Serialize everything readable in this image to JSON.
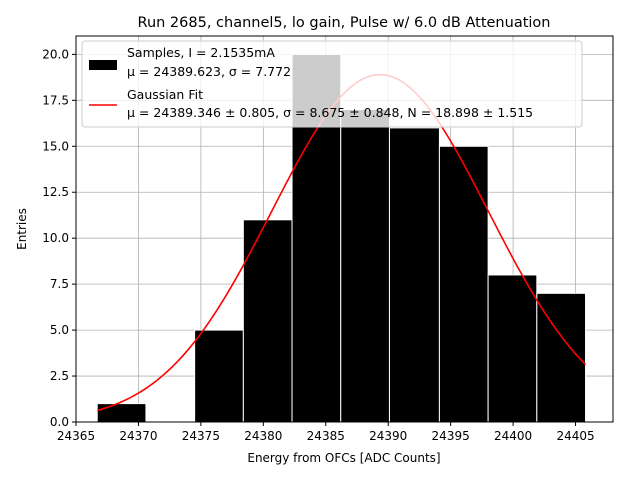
{
  "chart_data": {
    "type": "bar",
    "title": "Run 2685, channel5, lo gain, Pulse w/ 6.0 dB Attenuation",
    "xlabel": "Energy from OFCs [ADC Counts]",
    "ylabel": "Entries",
    "xlim": [
      24365,
      24408
    ],
    "ylim": [
      0,
      21
    ],
    "xticks": [
      24365,
      24370,
      24375,
      24380,
      24385,
      24390,
      24395,
      24400,
      24405
    ],
    "yticks": [
      0.0,
      2.5,
      5.0,
      7.5,
      10.0,
      12.5,
      15.0,
      17.5,
      20.0
    ],
    "grid": true,
    "legend_position": "upper-left",
    "histogram": {
      "name": "Samples, I = 2.1535mA",
      "stats_label": "μ = 24389.623, σ = 7.772",
      "color": "#000000",
      "bins": [
        {
          "x0": 24366.7,
          "x1": 24370.6,
          "count": 1
        },
        {
          "x0": 24370.6,
          "x1": 24374.5,
          "count": 0
        },
        {
          "x0": 24374.5,
          "x1": 24378.4,
          "count": 5
        },
        {
          "x0": 24378.4,
          "x1": 24382.3,
          "count": 11
        },
        {
          "x0": 24382.3,
          "x1": 24386.2,
          "count": 20
        },
        {
          "x0": 24386.2,
          "x1": 24390.1,
          "count": 17
        },
        {
          "x0": 24390.1,
          "x1": 24394.1,
          "count": 16
        },
        {
          "x0": 24394.1,
          "x1": 24398.0,
          "count": 15
        },
        {
          "x0": 24398.0,
          "x1": 24401.9,
          "count": 8
        },
        {
          "x0": 24401.9,
          "x1": 24405.8,
          "count": 7
        }
      ]
    },
    "fit": {
      "name": "Gaussian Fit",
      "params_label": "μ = 24389.346 ± 0.805, σ = 8.675 ± 0.848, N = 18.898 ± 1.515",
      "color": "#ff0000",
      "mu": 24389.346,
      "sigma": 8.675,
      "N": 18.898,
      "x_range": [
        24366.7,
        24405.8
      ]
    }
  }
}
